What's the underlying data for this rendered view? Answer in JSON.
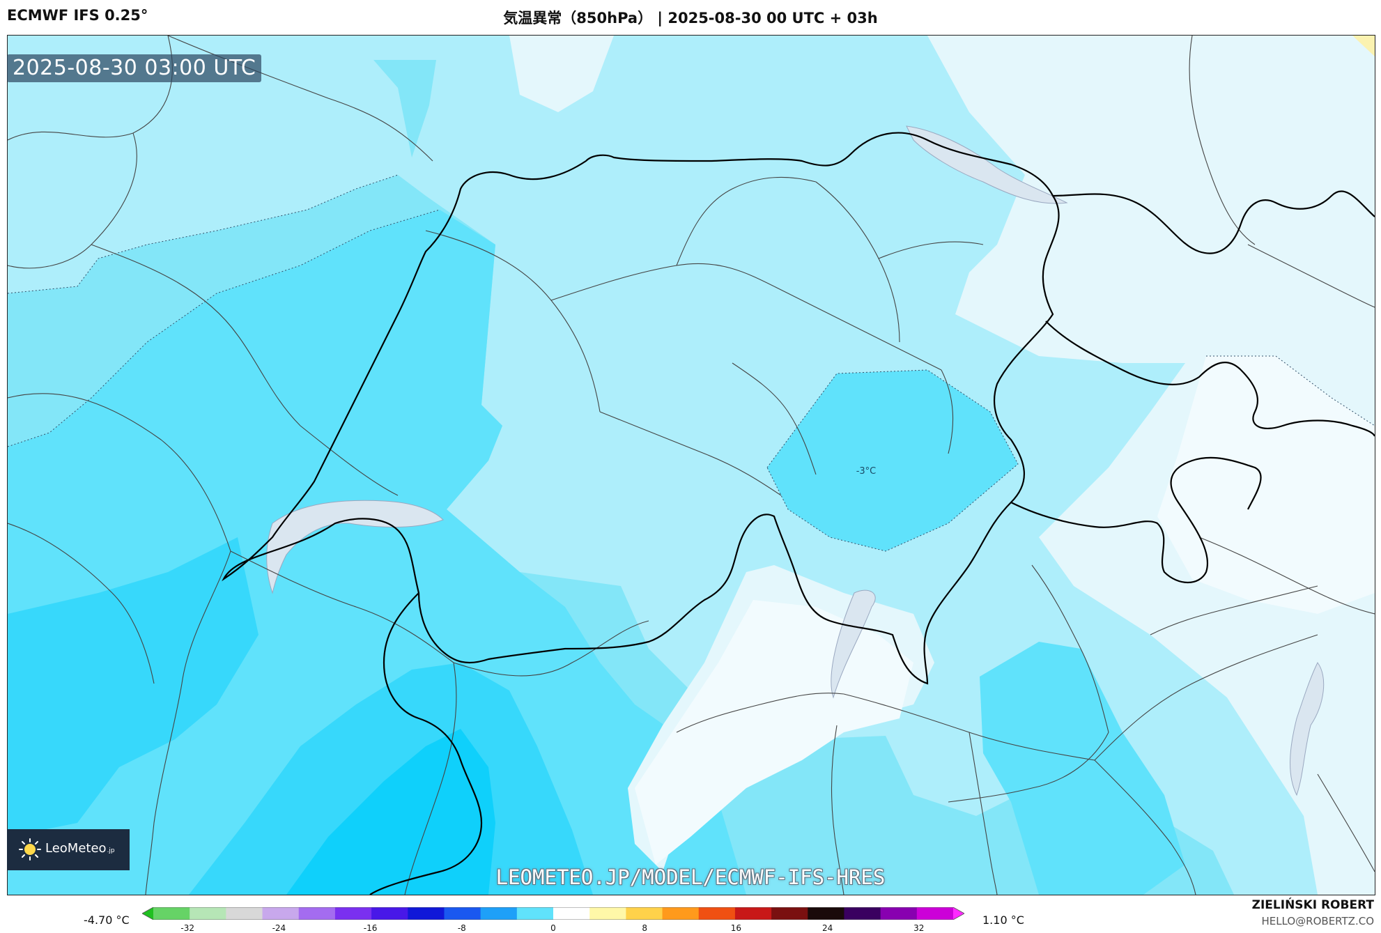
{
  "header": {
    "model": "ECMWF IFS 0.25°",
    "title": "気温異常（850hPa） | 2025-08-30 00 UTC + 03h"
  },
  "valid_time": "2025-08-30 03:00 UTC",
  "map": {
    "contour_label": "-3°C",
    "colors": {
      "anom_0_to_-1": "#aeeefb",
      "anom_-1_to_-2": "#83e6f8",
      "anom_-2_to_-3": "#60e2fb",
      "anom_-3_to_-4": "#37d8fb",
      "anom_-4_to_-5": "#0fd0fb",
      "anom_near_zero_pale": "#e4f7fc",
      "anom_near_zero_white": "#f2fbfe",
      "lakes": "#dae6f0",
      "border_national": "#000000",
      "border_admin": "#333333"
    }
  },
  "logo": {
    "text": "LeoMeteo",
    "suffix": ".jp"
  },
  "watermark": "LEOMETEO.JP/MODEL/ECMWF-IFS-HRES",
  "colorbar": {
    "min_label": "-4.70 °C",
    "max_label": "1.10 °C",
    "ticks": [
      "-32",
      "-24",
      "-16",
      "-8",
      "0",
      "8",
      "16",
      "24",
      "32"
    ],
    "tick_values": [
      -32,
      -24,
      -16,
      -8,
      0,
      8,
      16,
      24,
      32
    ],
    "range": [
      -35,
      35
    ],
    "stops": [
      "#20c020",
      "#66d366",
      "#b6e6b6",
      "#d8d8d8",
      "#c8a8ec",
      "#a46cf0",
      "#7a30f0",
      "#4818e8",
      "#1018d8",
      "#1a58f0",
      "#1ea0f8",
      "#60e2fb",
      "#ffffff",
      "#fff8a8",
      "#ffd24a",
      "#ff9a1c",
      "#f05012",
      "#c81818",
      "#7a1010",
      "#1a0a0a",
      "#3a0060",
      "#8800b0",
      "#cc00d8",
      "#ff2aff"
    ]
  },
  "credit": {
    "name": "ZIELIŃSKI ROBERT",
    "email": "HELLO@ROBERTZ.CO"
  }
}
